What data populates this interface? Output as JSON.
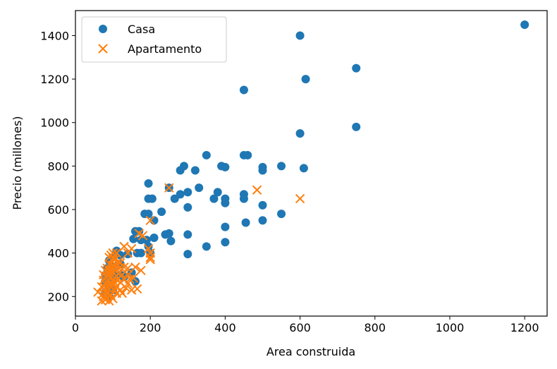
{
  "chart_data": {
    "type": "scatter",
    "title": "",
    "xlabel": "Area construida",
    "ylabel": "Precio (millones)",
    "xlim": [
      0,
      1260
    ],
    "ylim": [
      110,
      1515
    ],
    "xticks": [
      0,
      200,
      400,
      600,
      800,
      1000,
      1200
    ],
    "yticks": [
      200,
      400,
      600,
      800,
      1000,
      1200,
      1400
    ],
    "grid": false,
    "legend": "top-left",
    "series": [
      {
        "name": "Casa",
        "marker": "circle",
        "color": "#1f77b4",
        "points": [
          [
            1200,
            1450
          ],
          [
            600,
            1400
          ],
          [
            750,
            1250
          ],
          [
            615,
            1200
          ],
          [
            450,
            1150
          ],
          [
            600,
            950
          ],
          [
            750,
            980
          ],
          [
            350,
            850
          ],
          [
            450,
            850
          ],
          [
            460,
            850
          ],
          [
            290,
            800
          ],
          [
            280,
            780
          ],
          [
            320,
            780
          ],
          [
            390,
            800
          ],
          [
            400,
            795
          ],
          [
            500,
            795
          ],
          [
            500,
            780
          ],
          [
            550,
            800
          ],
          [
            610,
            790
          ],
          [
            195,
            720
          ],
          [
            250,
            700
          ],
          [
            330,
            700
          ],
          [
            300,
            680
          ],
          [
            280,
            670
          ],
          [
            380,
            680
          ],
          [
            265,
            650
          ],
          [
            370,
            650
          ],
          [
            400,
            650
          ],
          [
            450,
            670
          ],
          [
            450,
            650
          ],
          [
            195,
            650
          ],
          [
            205,
            650
          ],
          [
            400,
            630
          ],
          [
            500,
            620
          ],
          [
            300,
            610
          ],
          [
            230,
            590
          ],
          [
            185,
            580
          ],
          [
            195,
            580
          ],
          [
            550,
            580
          ],
          [
            210,
            550
          ],
          [
            400,
            520
          ],
          [
            455,
            540
          ],
          [
            500,
            550
          ],
          [
            160,
            500
          ],
          [
            170,
            500
          ],
          [
            240,
            485
          ],
          [
            250,
            490
          ],
          [
            300,
            485
          ],
          [
            155,
            465
          ],
          [
            175,
            460
          ],
          [
            190,
            460
          ],
          [
            210,
            470
          ],
          [
            255,
            455
          ],
          [
            400,
            450
          ],
          [
            350,
            430
          ],
          [
            195,
            430
          ],
          [
            165,
            400
          ],
          [
            175,
            400
          ],
          [
            200,
            400
          ],
          [
            300,
            395
          ],
          [
            140,
            395
          ],
          [
            110,
            410
          ],
          [
            120,
            390
          ],
          [
            100,
            380
          ],
          [
            90,
            365
          ],
          [
            95,
            340
          ],
          [
            100,
            330
          ],
          [
            110,
            340
          ],
          [
            120,
            350
          ],
          [
            85,
            330
          ],
          [
            100,
            310
          ],
          [
            150,
            310
          ],
          [
            120,
            300
          ],
          [
            80,
            300
          ],
          [
            90,
            290
          ],
          [
            100,
            280
          ],
          [
            130,
            290
          ],
          [
            80,
            270
          ],
          [
            160,
            270
          ],
          [
            90,
            250
          ],
          [
            95,
            240
          ],
          [
            100,
            230
          ],
          [
            80,
            220
          ],
          [
            90,
            200
          ]
        ]
      },
      {
        "name": "Apartamento",
        "marker": "x",
        "color": "#ff7f0e",
        "points": [
          [
            250,
            700
          ],
          [
            485,
            690
          ],
          [
            600,
            650
          ],
          [
            200,
            550
          ],
          [
            170,
            490
          ],
          [
            180,
            480
          ],
          [
            130,
            430
          ],
          [
            150,
            420
          ],
          [
            140,
            400
          ],
          [
            200,
            400
          ],
          [
            195,
            420
          ],
          [
            200,
            380
          ],
          [
            200,
            370
          ],
          [
            110,
            400
          ],
          [
            100,
            400
          ],
          [
            95,
            390
          ],
          [
            90,
            380
          ],
          [
            100,
            375
          ],
          [
            105,
            370
          ],
          [
            115,
            360
          ],
          [
            120,
            355
          ],
          [
            90,
            350
          ],
          [
            100,
            345
          ],
          [
            110,
            340
          ],
          [
            120,
            335
          ],
          [
            130,
            335
          ],
          [
            140,
            330
          ],
          [
            160,
            335
          ],
          [
            85,
            330
          ],
          [
            95,
            325
          ],
          [
            105,
            320
          ],
          [
            80,
            320
          ],
          [
            90,
            315
          ],
          [
            100,
            310
          ],
          [
            115,
            305
          ],
          [
            125,
            300
          ],
          [
            140,
            300
          ],
          [
            175,
            320
          ],
          [
            75,
            300
          ],
          [
            85,
            295
          ],
          [
            95,
            290
          ],
          [
            105,
            285
          ],
          [
            115,
            285
          ],
          [
            130,
            280
          ],
          [
            145,
            280
          ],
          [
            155,
            285
          ],
          [
            75,
            275
          ],
          [
            85,
            270
          ],
          [
            95,
            265
          ],
          [
            105,
            265
          ],
          [
            120,
            265
          ],
          [
            140,
            260
          ],
          [
            80,
            255
          ],
          [
            90,
            250
          ],
          [
            100,
            250
          ],
          [
            110,
            245
          ],
          [
            135,
            240
          ],
          [
            70,
            245
          ],
          [
            80,
            240
          ],
          [
            90,
            235
          ],
          [
            105,
            230
          ],
          [
            120,
            230
          ],
          [
            150,
            230
          ],
          [
            165,
            235
          ],
          [
            60,
            220
          ],
          [
            75,
            215
          ],
          [
            85,
            210
          ],
          [
            95,
            205
          ],
          [
            110,
            215
          ],
          [
            125,
            215
          ],
          [
            75,
            200
          ],
          [
            85,
            195
          ],
          [
            100,
            190
          ],
          [
            70,
            180
          ],
          [
            80,
            185
          ],
          [
            90,
            180
          ]
        ]
      }
    ]
  }
}
